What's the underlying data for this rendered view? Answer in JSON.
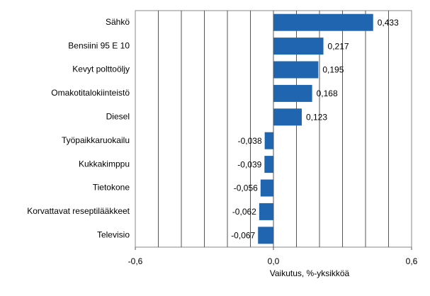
{
  "chart_data": {
    "type": "hbar",
    "categories": [
      "Sähkö",
      "Bensiini 95 E 10",
      "Kevyt polttoöljy",
      "Omakotitalokiinteistö",
      "Diesel",
      "Työpaikkaruokailu",
      "Kukkakimppu",
      "Tietokone",
      "Korvattavat reseptilääkkeet",
      "Televisio"
    ],
    "values": [
      0.433,
      0.217,
      0.195,
      0.168,
      0.123,
      -0.038,
      -0.039,
      -0.056,
      -0.062,
      -0.067
    ],
    "value_labels": [
      "0,433",
      "0,217",
      "0,195",
      "0,168",
      "0,123",
      "-0,038",
      "-0,039",
      "-0,056",
      "-0,062",
      "-0,067"
    ],
    "color": "#1f65b0",
    "xlabel": "Vaikutus, %-yksikköä",
    "xlim": [
      -0.6,
      0.6
    ],
    "xticks": [
      {
        "value": -0.6,
        "label": "-0,6"
      },
      {
        "value": 0,
        "label": "0,0"
      },
      {
        "value": 0.6,
        "label": "0,6"
      }
    ],
    "xgrid": [
      -0.5,
      -0.4,
      -0.3,
      -0.2,
      -0.1,
      0.1,
      0.2,
      0.3,
      0.4,
      0.5
    ]
  }
}
